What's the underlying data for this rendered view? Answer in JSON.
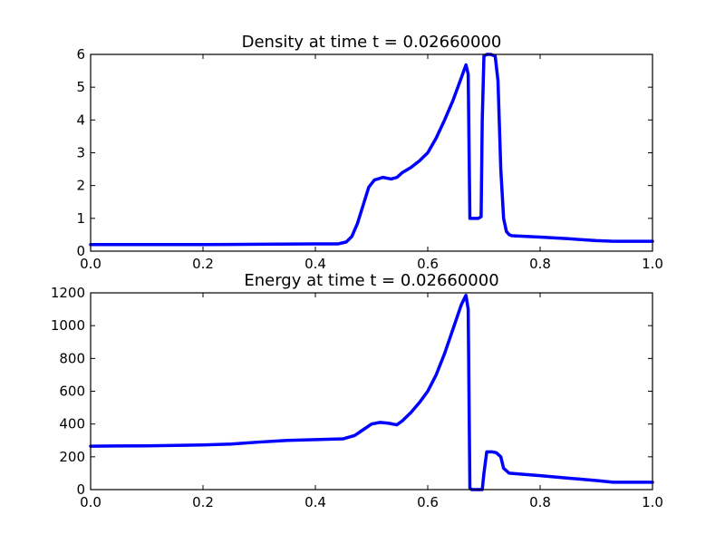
{
  "chart_data": [
    {
      "type": "line",
      "title": "Density at time t =     0.02660000",
      "xlabel": "",
      "ylabel": "",
      "xlim": [
        0.0,
        1.0
      ],
      "ylim": [
        0,
        6
      ],
      "xticks": [
        0.0,
        0.2,
        0.4,
        0.6,
        0.8,
        1.0
      ],
      "xtick_labels": [
        "0.0",
        "0.2",
        "0.4",
        "0.6",
        "0.8",
        "1.0"
      ],
      "yticks": [
        0,
        1,
        2,
        3,
        4,
        5,
        6
      ],
      "ytick_labels": [
        "0",
        "1",
        "2",
        "3",
        "4",
        "5",
        "6"
      ],
      "grid": false,
      "line_color": "#0000ff",
      "series": [
        {
          "x": [
            0.0,
            0.1,
            0.2,
            0.3,
            0.4,
            0.44,
            0.455,
            0.465,
            0.475,
            0.485,
            0.495,
            0.505,
            0.52,
            0.535,
            0.545,
            0.555,
            0.57,
            0.585,
            0.6,
            0.615,
            0.63,
            0.645,
            0.66,
            0.668,
            0.672,
            0.675,
            0.68,
            0.69,
            0.695,
            0.697,
            0.7,
            0.705,
            0.712,
            0.72,
            0.725,
            0.73,
            0.735,
            0.74,
            0.745,
            0.75,
            0.8,
            0.85,
            0.9,
            0.93,
            1.0
          ],
          "y": [
            0.2,
            0.2,
            0.2,
            0.21,
            0.22,
            0.22,
            0.28,
            0.45,
            0.85,
            1.4,
            1.95,
            2.17,
            2.25,
            2.2,
            2.25,
            2.4,
            2.55,
            2.75,
            3.0,
            3.45,
            4.0,
            4.6,
            5.3,
            5.68,
            5.4,
            1.0,
            1.0,
            1.0,
            1.05,
            4.0,
            5.95,
            6.0,
            6.0,
            5.95,
            5.2,
            2.5,
            1.0,
            0.6,
            0.5,
            0.47,
            0.43,
            0.38,
            0.32,
            0.3,
            0.3
          ]
        }
      ]
    },
    {
      "type": "line",
      "title": "Energy at time t =     0.02660000",
      "xlabel": "",
      "ylabel": "",
      "xlim": [
        0.0,
        1.0
      ],
      "ylim": [
        0,
        1200
      ],
      "xticks": [
        0.0,
        0.2,
        0.4,
        0.6,
        0.8,
        1.0
      ],
      "xtick_labels": [
        "0.0",
        "0.2",
        "0.4",
        "0.6",
        "0.8",
        "1.0"
      ],
      "yticks": [
        0,
        200,
        400,
        600,
        800,
        1000,
        1200
      ],
      "ytick_labels": [
        "0",
        "200",
        "400",
        "600",
        "800",
        "1000",
        "1200"
      ],
      "grid": false,
      "line_color": "#0000ff",
      "series": [
        {
          "x": [
            0.0,
            0.1,
            0.2,
            0.25,
            0.3,
            0.35,
            0.4,
            0.45,
            0.47,
            0.485,
            0.5,
            0.515,
            0.53,
            0.545,
            0.555,
            0.57,
            0.585,
            0.6,
            0.615,
            0.63,
            0.645,
            0.66,
            0.668,
            0.672,
            0.675,
            0.678,
            0.69,
            0.697,
            0.7,
            0.705,
            0.715,
            0.722,
            0.73,
            0.735,
            0.745,
            0.8,
            0.85,
            0.9,
            0.93,
            1.0
          ],
          "y": [
            265,
            267,
            272,
            278,
            290,
            300,
            305,
            310,
            330,
            365,
            400,
            410,
            405,
            395,
            420,
            470,
            530,
            600,
            700,
            830,
            980,
            1130,
            1185,
            1100,
            10,
            0,
            0,
            0,
            100,
            230,
            230,
            225,
            200,
            130,
            100,
            85,
            70,
            55,
            45,
            45
          ]
        }
      ]
    }
  ]
}
